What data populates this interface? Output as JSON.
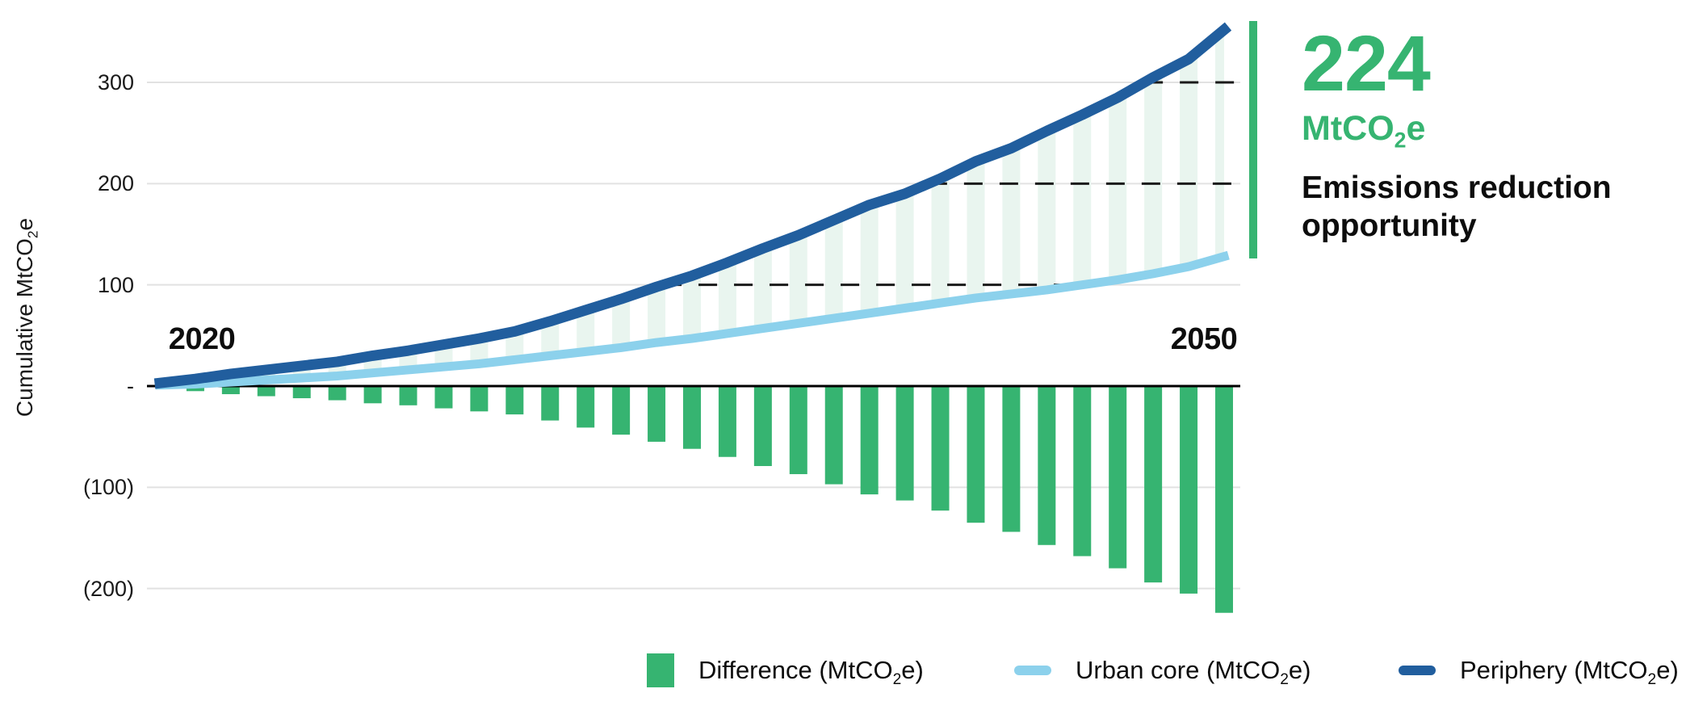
{
  "colors": {
    "green": "#36B471",
    "dark_blue": "#215E9E",
    "light_blue": "#8CD1EC",
    "stripe_green": "#E9F5EF",
    "grid_gray": "#E2E2E2",
    "axis_black": "#000000",
    "dash_black": "#1A1A1A"
  },
  "y_axis": {
    "title": {
      "pre": "Cumulative MtCO",
      "sub": "2",
      "post": "e"
    },
    "ticks": [
      {
        "label": "300",
        "value": 300
      },
      {
        "label": "200",
        "value": 200
      },
      {
        "label": "100",
        "value": 100
      },
      {
        "label": "-",
        "value": 0
      },
      {
        "label": "(100)",
        "value": -100
      },
      {
        "label": "(200)",
        "value": -200
      }
    ]
  },
  "x_axis": {
    "labels": [
      {
        "text": "2020",
        "year": 2020
      },
      {
        "text": "2050",
        "year": 2050
      }
    ]
  },
  "annotation": {
    "value": "224",
    "unit": {
      "pre": "MtCO",
      "sub": "2",
      "post": "e"
    },
    "line1": "Emissions reduction",
    "line2": "opportunity"
  },
  "legend": {
    "items": [
      {
        "id": "difference",
        "swatch": "square",
        "color": "#36B471",
        "label": {
          "pre": "Difference (MtCO",
          "sub": "2",
          "post": "e)"
        }
      },
      {
        "id": "urban-core",
        "swatch": "line",
        "color": "#8CD1EC",
        "label": {
          "pre": "Urban core (MtCO",
          "sub": "2",
          "post": "e)"
        }
      },
      {
        "id": "periphery",
        "swatch": "line",
        "color": "#215E9E",
        "label": {
          "pre": "Periphery (MtCO",
          "sub": "2",
          "post": "e)"
        }
      }
    ]
  },
  "chart_data": {
    "type": "combo",
    "title": "",
    "ylabel": "Cumulative MtCO2e",
    "x": [
      2020,
      2021,
      2022,
      2023,
      2024,
      2025,
      2026,
      2027,
      2028,
      2029,
      2030,
      2031,
      2032,
      2033,
      2034,
      2035,
      2036,
      2037,
      2038,
      2039,
      2040,
      2041,
      2042,
      2043,
      2044,
      2045,
      2046,
      2047,
      2048,
      2049,
      2050
    ],
    "series": [
      {
        "name": "Difference (MtCO2e)",
        "type": "bar",
        "color": "#36B471",
        "values": [
          0,
          -5,
          -8,
          -10,
          -12,
          -14,
          -17,
          -19,
          -22,
          -25,
          -28,
          -34,
          -41,
          -48,
          -55,
          -62,
          -70,
          -79,
          -87,
          -97,
          -107,
          -113,
          -123,
          -135,
          -144,
          -157,
          -168,
          -180,
          -194,
          -205,
          -224
        ]
      },
      {
        "name": "Urban core (MtCO2e)",
        "type": "line",
        "color": "#8CD1EC",
        "values": [
          1,
          2,
          4,
          6,
          8,
          10,
          13,
          16,
          19,
          22,
          26,
          30,
          34,
          38,
          43,
          47,
          52,
          57,
          62,
          67,
          72,
          77,
          82,
          87,
          91,
          95,
          100,
          105,
          111,
          118,
          128
        ]
      },
      {
        "name": "Periphery (MtCO2e)",
        "type": "line",
        "color": "#215E9E",
        "values": [
          3,
          7,
          12,
          16,
          20,
          24,
          30,
          35,
          41,
          47,
          54,
          64,
          75,
          86,
          98,
          109,
          122,
          136,
          149,
          164,
          179,
          190,
          205,
          222,
          235,
          252,
          268,
          285,
          305,
          323,
          352
        ]
      }
    ],
    "grid_levels": [
      300,
      200,
      100,
      -100,
      -200
    ],
    "dashed_gap_levels": [
      100,
      200,
      300
    ],
    "ylim": [
      -240,
      370
    ],
    "xlim": [
      2020,
      2050
    ],
    "legend_position": "bottom",
    "emissions_reduction_opportunity_mtco2e": 224
  }
}
